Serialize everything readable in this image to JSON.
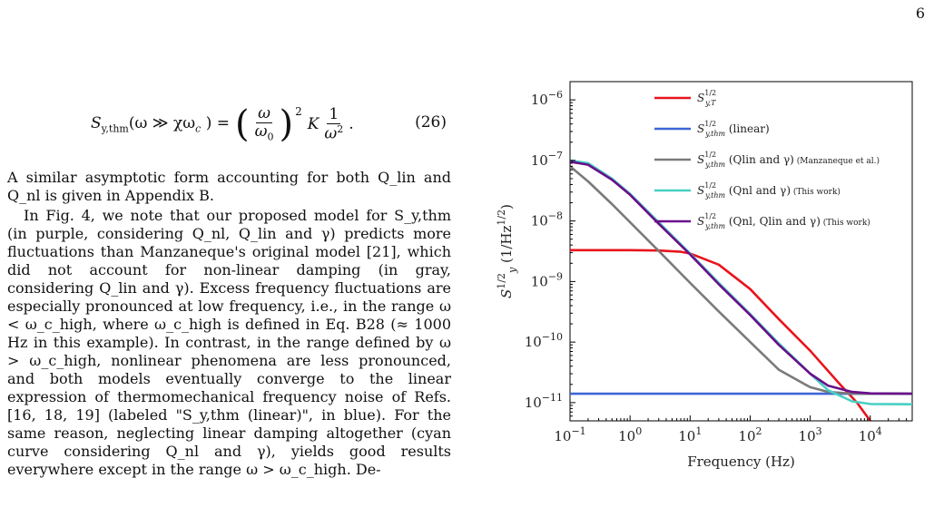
{
  "page_number": "6",
  "equation": {
    "lhs": "S",
    "lhs_sub": "y,thm",
    "argument": "(ω ≫ χω",
    "argument_sub": "c",
    "argument_end": ") =",
    "frac1_num": "ω",
    "frac1_den": "ω",
    "frac1_den_sub": "0",
    "power": "2",
    "constant": "K",
    "frac2_num": "1",
    "frac2_den": "ω",
    "frac2_den_sup": "2",
    "end": ".",
    "number": "(26)"
  },
  "paragraphs": [
    "A similar asymptotic form accounting for both Q_lin and Q_nl is given in Appendix B.",
    "In Fig. 4, we note that our proposed model for S_y,thm (in purple, considering Q_nl, Q_lin and γ) predicts more fluctuations than Manzaneque's original model [21], which did not account for non-linear damping (in gray, considering Q_lin and γ). Excess frequency fluctuations are especially pronounced at low frequency, i.e., in the range ω < ω_c_high, where ω_c_high is defined in Eq. B28 (≈ 1000 Hz in this example). In contrast, in the range defined by ω > ω_c_high, nonlinear phenomena are less pronounced, and both models eventually converge to the linear expression of thermomechanical frequency noise of Refs. [16, 18, 19] (labeled \"S_y,thm (linear)\", in blue). For the same reason, neglecting linear damping altogether (cyan curve considering Q_nl and γ), yields good results everywhere except in the range ω > ω_c_high. De-"
  ],
  "chart_data": {
    "type": "line",
    "xlabel": "Frequency (Hz)",
    "ylabel": "S_y^1/2 (1/Hz^1/2)",
    "x_scale": "log",
    "y_scale": "log",
    "xlim": [
      0.1,
      50000
    ],
    "ylim": [
      5e-12,
      2e-06
    ],
    "x_ticks": [
      0.1,
      1,
      10,
      100,
      1000,
      10000
    ],
    "x_tick_labels": [
      "10^−1",
      "10^0",
      "10^1",
      "10^2",
      "10^3",
      "10^4"
    ],
    "y_ticks": [
      1e-11,
      1e-10,
      1e-09,
      1e-08,
      1e-07,
      1e-06
    ],
    "y_tick_labels": [
      "10^−11",
      "10^−10",
      "10^−9",
      "10^−8",
      "10^−7",
      "10^−6"
    ],
    "grid": false,
    "legend_position": "top-right",
    "series": [
      {
        "name": "S_y,T^1/2",
        "legend_main": "S",
        "legend_sup": "1/2",
        "legend_sub": "y,T",
        "legend_tail": "",
        "legend_small": "",
        "color": "#e8141c",
        "x": [
          0.1,
          1,
          3,
          7,
          10,
          30,
          100,
          300,
          1000,
          3000,
          6000,
          10000
        ],
        "y": [
          3.3e-09,
          3.3e-09,
          3.25e-09,
          3.1e-09,
          2.9e-09,
          1.9e-09,
          7.5e-10,
          2.4e-10,
          7.2e-11,
          2.1e-11,
          1e-11,
          5e-12
        ]
      },
      {
        "name": "S_y,thm^1/2 (linear)",
        "legend_main": "S",
        "legend_sup": "1/2",
        "legend_sub": "y,thm",
        "legend_tail": " (linear)",
        "legend_small": "",
        "color": "#3c66d6",
        "x": [
          0.1,
          50000
        ],
        "y": [
          1.4e-11,
          1.4e-11
        ]
      },
      {
        "name": "S_y,thm^1/2 (Q_lin and γ) (Manzaneque et al.)",
        "legend_main": "S",
        "legend_sup": "1/2",
        "legend_sub": "y,thm",
        "legend_tail": " (Qlin and γ)",
        "legend_small": " (Manzaneque et al.)",
        "color": "#7a7a7a",
        "x": [
          0.1,
          0.2,
          0.5,
          1,
          3,
          10,
          30,
          100,
          300,
          1000,
          2000,
          5000,
          50000
        ],
        "y": [
          8e-08,
          4.5e-08,
          1.9e-08,
          9.5e-09,
          3.2e-09,
          9.5e-10,
          3.2e-10,
          1e-10,
          3.5e-11,
          1.8e-11,
          1.5e-11,
          1.4e-11,
          1.4e-11
        ]
      },
      {
        "name": "S_y,thm^1/2 (Q_nl and γ) (This work)",
        "legend_main": "S",
        "legend_sup": "1/2",
        "legend_sub": "y,thm",
        "legend_tail": " (Qnl and γ)",
        "legend_small": " (This work)",
        "color": "#48cfc4",
        "x": [
          0.1,
          0.2,
          0.5,
          1,
          3,
          10,
          30,
          100,
          300,
          1000,
          2000,
          5000,
          10000,
          50000
        ],
        "y": [
          1e-07,
          9e-08,
          5e-08,
          2.8e-08,
          9.5e-09,
          2.9e-09,
          9.5e-10,
          2.9e-10,
          9.5e-11,
          3e-11,
          1.6e-11,
          1.05e-11,
          9.5e-12,
          9.4e-12
        ]
      },
      {
        "name": "S_y,thm^1/2 (Q_nl, Q_lin and γ) (This work)",
        "legend_main": "S",
        "legend_sup": "1/2",
        "legend_sub": "y,thm",
        "legend_tail": " (Qnl, Qlin and γ)",
        "legend_small": " (This work)",
        "color": "#6a0f8a",
        "x": [
          0.1,
          0.2,
          0.5,
          1,
          3,
          10,
          30,
          100,
          300,
          1000,
          2000,
          5000,
          10000,
          50000
        ],
        "y": [
          9.5e-08,
          8.5e-08,
          4.8e-08,
          2.7e-08,
          9e-09,
          2.8e-09,
          9e-10,
          2.8e-10,
          9e-11,
          3e-11,
          1.9e-11,
          1.5e-11,
          1.42e-11,
          1.4e-11
        ]
      }
    ]
  }
}
